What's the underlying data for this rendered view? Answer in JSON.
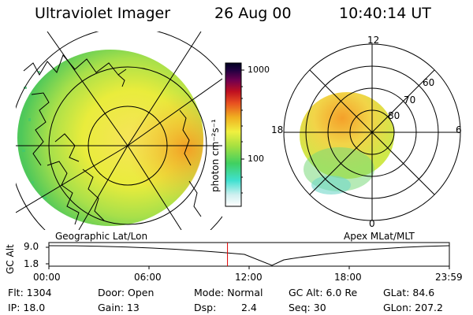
{
  "header": {
    "title": "Ultraviolet Imager",
    "date": "26 Aug 00",
    "time": "10:40:14 UT"
  },
  "panels": {
    "geographic_label": "Geographic Lat/Lon",
    "apex_label": "Apex MLat/MLT"
  },
  "colorbar": {
    "label": "photon cm⁻²s⁻¹",
    "ticks": [
      "1000",
      "100"
    ],
    "scale": "log"
  },
  "apex_plot": {
    "mlt_labels": [
      "12",
      "18",
      "6",
      "0"
    ],
    "mlat_labels": [
      "60",
      "70",
      "80"
    ]
  },
  "altitude_strip": {
    "axis_label": "GC Alt",
    "y_ticks": [
      "9.0",
      "1.8"
    ],
    "x_ticks": [
      "00:00",
      "06:00",
      "12:00",
      "18:00",
      "23:59"
    ],
    "current_time_fraction": 0.446
  },
  "info": {
    "flt": "Flt: 1304",
    "ip": "IP: 18.0",
    "door": "Door: Open",
    "gain": "Gain: 13",
    "mode": "Mode: Normal",
    "dsp_label": "Dsp:",
    "dsp_value": "2.4",
    "gc_alt": "GC Alt: 6.0 Re",
    "seq": "Seq: 30",
    "glat": "GLat:  84.6",
    "glon": "GLon: 207.2"
  },
  "colors": {
    "current_time_marker": "#e00000",
    "background": "#ffffff"
  }
}
